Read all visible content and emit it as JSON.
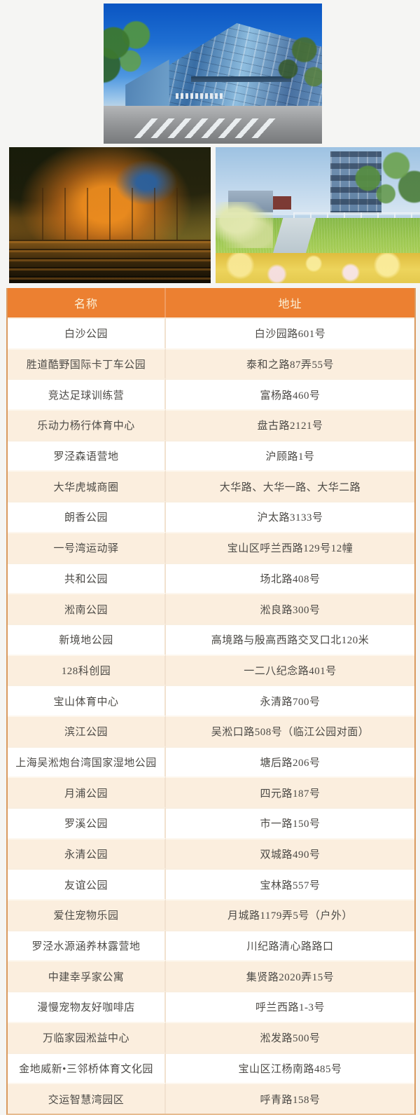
{
  "page": {
    "background": "#f5f5f3"
  },
  "photos": {
    "top": {
      "description": "street view of a modern angled glass shopping-center building with trees, crosswalk and orange storefront"
    },
    "left": {
      "description": "autumn metasequoia trees with orange foliage reflected in a pond"
    },
    "right": {
      "description": "park with ornamental green grasses, yellow flowers, white fence and a blue apartment building"
    }
  },
  "table": {
    "headers": [
      "名称",
      "地址"
    ],
    "rows": [
      {
        "name": "白沙公园",
        "address": "白沙园路601号"
      },
      {
        "name": "胜道酷野国际卡丁车公园",
        "address": "泰和之路87弄55号"
      },
      {
        "name": "竞达足球训练营",
        "address": "富杨路460号"
      },
      {
        "name": "乐动力杨行体育中心",
        "address": "盘古路2121号"
      },
      {
        "name": "罗泾森语营地",
        "address": "沪顾路1号"
      },
      {
        "name": "大华虎城商圈",
        "address": "大华路、大华一路、大华二路"
      },
      {
        "name": "朗香公园",
        "address": "沪太路3133号"
      },
      {
        "name": "一号湾运动驿",
        "address": "宝山区呼兰西路129号12幢"
      },
      {
        "name": "共和公园",
        "address": "场北路408号"
      },
      {
        "name": "淞南公园",
        "address": "淞良路300号"
      },
      {
        "name": "新境地公园",
        "address": "高境路与殷高西路交叉口北120米"
      },
      {
        "name": "128科创园",
        "address": "一二八纪念路401号"
      },
      {
        "name": "宝山体育中心",
        "address": "永清路700号"
      },
      {
        "name": "滨江公园",
        "address": "吴淞口路508号（临江公园对面）"
      },
      {
        "name": "上海吴淞炮台湾国家湿地公园",
        "address": "塘后路206号"
      },
      {
        "name": "月浦公园",
        "address": "四元路187号"
      },
      {
        "name": "罗溪公园",
        "address": "市一路150号"
      },
      {
        "name": "永清公园",
        "address": "双城路490号"
      },
      {
        "name": "友谊公园",
        "address": "宝林路557号"
      },
      {
        "name": "爱住宠物乐园",
        "address": "月城路1179弄5号（户外）"
      },
      {
        "name": "罗泾水源涵养林露营地",
        "address": "川纪路清心路路口"
      },
      {
        "name": "中建幸孚家公寓",
        "address": "集贤路2020弄15号"
      },
      {
        "name": "漫慢宠物友好咖啡店",
        "address": "呼兰西路1-3号"
      },
      {
        "name": "万临家园淞益中心",
        "address": "淞发路500号"
      },
      {
        "name": "金地威新•三邻桥体育文化园",
        "address": "宝山区江杨南路485号"
      },
      {
        "name": "交运智慧湾园区",
        "address": "呼青路158号"
      }
    ],
    "colors": {
      "header_background": "#ec8031",
      "header_text": "#fbf2da",
      "row_alt_background": "#fbeede",
      "row_background": "#ffffff",
      "cell_text": "#4c4a46",
      "outer_border": "#d99a60"
    }
  }
}
